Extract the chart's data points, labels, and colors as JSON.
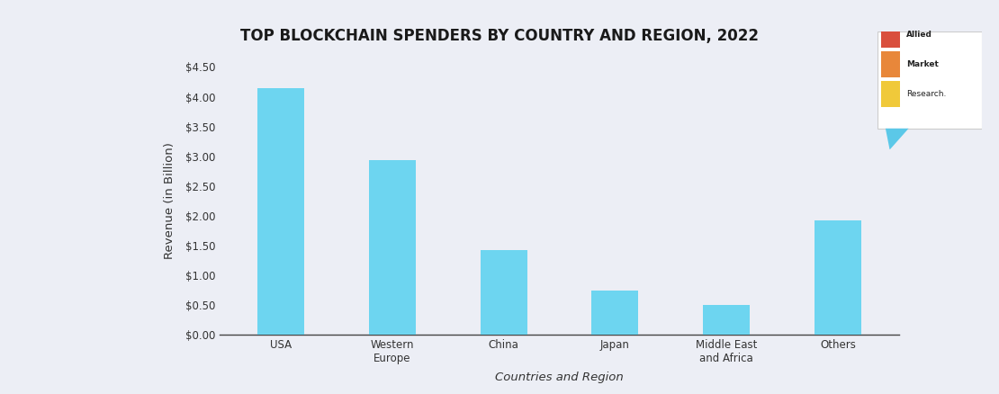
{
  "title": "TOP BLOCKCHAIN SPENDERS BY COUNTRY AND REGION, 2022",
  "categories": [
    "USA",
    "Western\nEurope",
    "China",
    "Japan",
    "Middle East\nand Africa",
    "Others"
  ],
  "values": [
    4.15,
    2.93,
    1.43,
    0.75,
    0.5,
    1.93
  ],
  "bar_color": "#6DD5F0",
  "background_color": "#ECEEF5",
  "xlabel": "Countries and Region",
  "ylabel": "Revenue (in Billion)",
  "ylim": [
    0,
    4.5
  ],
  "yticks": [
    0.0,
    0.5,
    1.0,
    1.5,
    2.0,
    2.5,
    3.0,
    3.5,
    4.0,
    4.5
  ],
  "ytick_labels": [
    "$0.00",
    "$0.50",
    "$1.00",
    "$1.50",
    "$2.00",
    "$2.50",
    "$3.00",
    "$3.50",
    "$4.00",
    "$4.50"
  ],
  "title_fontsize": 12,
  "axis_label_fontsize": 9.5,
  "tick_fontsize": 8.5,
  "bar_width": 0.42,
  "spine_color": "#444444",
  "logo_colors": [
    "#D94F3D",
    "#E8873A",
    "#F0C93A"
  ],
  "logo_text_lines": [
    "Allied",
    "Market",
    "Research."
  ],
  "logo_bubble_color": "#5BC8E8"
}
